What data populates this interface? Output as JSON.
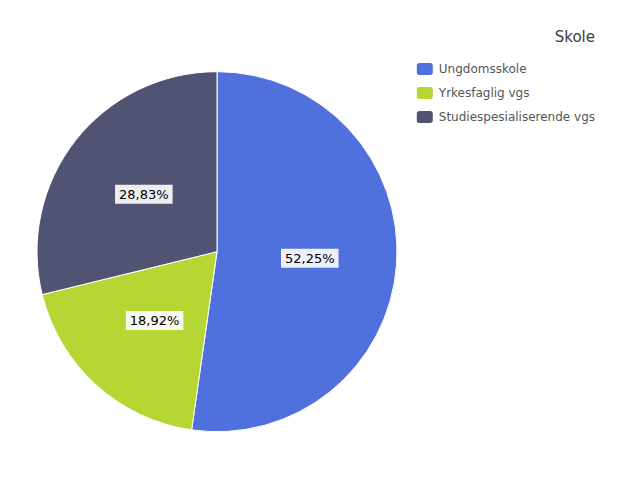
{
  "chart_data": {
    "type": "pie",
    "title": "Skole",
    "categories": [
      "Ungdomsskole",
      "Yrkesfaglig vgs",
      "Studiespesialiserende vgs"
    ],
    "values": [
      52.25,
      18.92,
      28.83
    ],
    "value_labels": [
      "52,25%",
      "18,92%",
      "28,83%"
    ],
    "data_labels": true,
    "legend": "upper right"
  }
}
